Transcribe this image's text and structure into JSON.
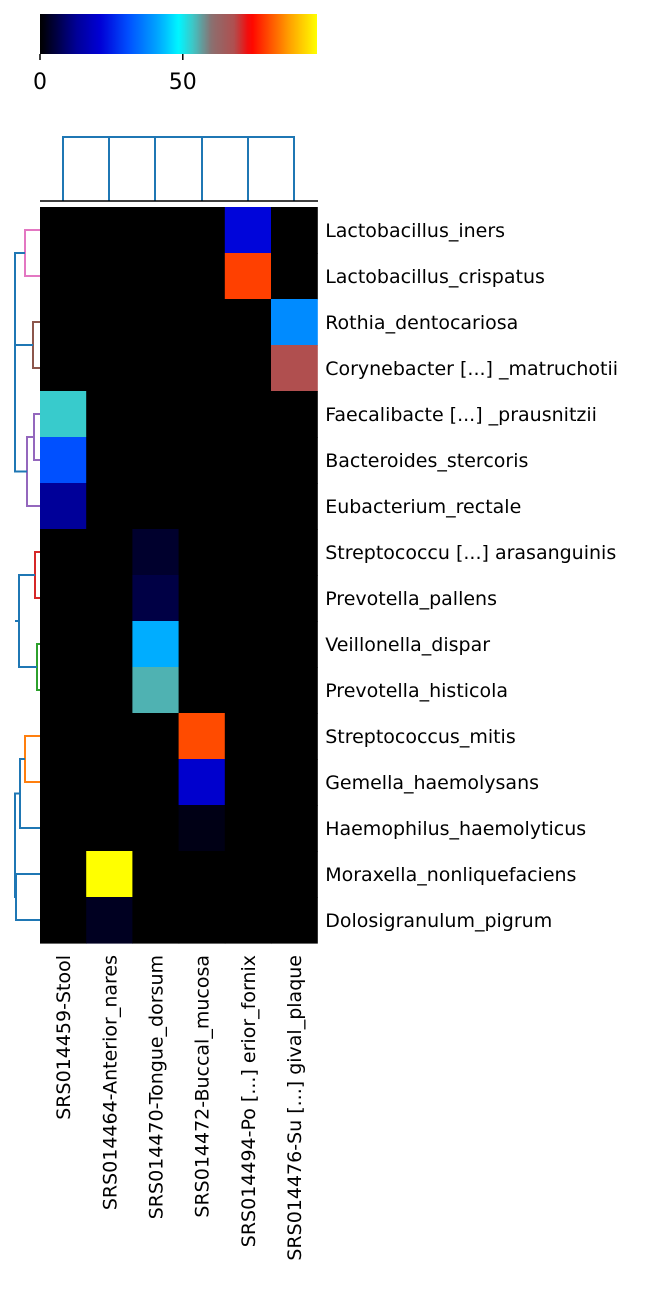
{
  "chart_data": {
    "type": "heatmap",
    "rows": [
      "Lactobacillus_iners",
      "Lactobacillus_crispatus",
      "Rothia_dentocariosa",
      "Corynebacter [...] _matruchotii",
      "Faecalibacte [...] _prausnitzii",
      "Bacteroides_stercoris",
      "Eubacterium_rectale",
      "Streptococcu [...] arasanguinis",
      "Prevotella_pallens",
      "Veillonella_dispar",
      "Prevotella_histicola",
      "Streptococcus_mitis",
      "Gemella_haemolysans",
      "Haemophilus_haemolyticus",
      "Moraxella_nonliquefaciens",
      "Dolosigranulum_pigrum"
    ],
    "columns": [
      "SRS014459-Stool",
      "SRS014464-Anterior_nares",
      "SRS014470-Tongue_dorsum",
      "SRS014472-Buccal_mucosa",
      "SRS014494-Po [...] erior_fornix",
      "SRS014476-Su [...] gival_plaque"
    ],
    "values": [
      [
        0,
        0,
        0,
        0,
        22,
        0
      ],
      [
        0,
        0,
        0,
        0,
        79,
        0
      ],
      [
        0,
        0,
        0,
        0,
        0,
        38
      ],
      [
        0,
        0,
        0,
        0,
        0,
        68
      ],
      [
        53,
        0,
        0,
        0,
        0,
        0
      ],
      [
        31,
        0,
        0,
        0,
        0,
        0
      ],
      [
        13,
        0,
        0,
        0,
        0,
        0
      ],
      [
        0,
        0,
        4,
        0,
        0,
        0
      ],
      [
        0,
        0,
        6,
        0,
        0,
        0
      ],
      [
        0,
        0,
        42,
        0,
        0,
        0
      ],
      [
        0,
        0,
        55,
        0,
        0,
        0
      ],
      [
        0,
        0,
        0,
        80,
        0,
        0
      ],
      [
        0,
        0,
        0,
        20,
        0,
        0
      ],
      [
        0,
        0,
        0,
        2,
        0,
        0
      ],
      [
        0,
        97,
        0,
        0,
        0,
        0
      ],
      [
        0,
        3,
        0,
        0,
        0,
        0
      ]
    ],
    "colorbar": {
      "colormap": "gist_ncar-like",
      "range": [
        0,
        97
      ],
      "ticks": [
        0,
        50
      ],
      "tick_labels": [
        "0",
        "50"
      ]
    },
    "row_dendrogram": {
      "cluster_colors": [
        "#e377c2",
        "#8c564b",
        "#9467bd",
        "#d62728",
        "#2ca02c",
        "#ff7f0e",
        "#1f77b4"
      ],
      "link_color": "#1f77b4"
    },
    "col_dendrogram": {
      "link_color": "#1f77b4"
    }
  }
}
